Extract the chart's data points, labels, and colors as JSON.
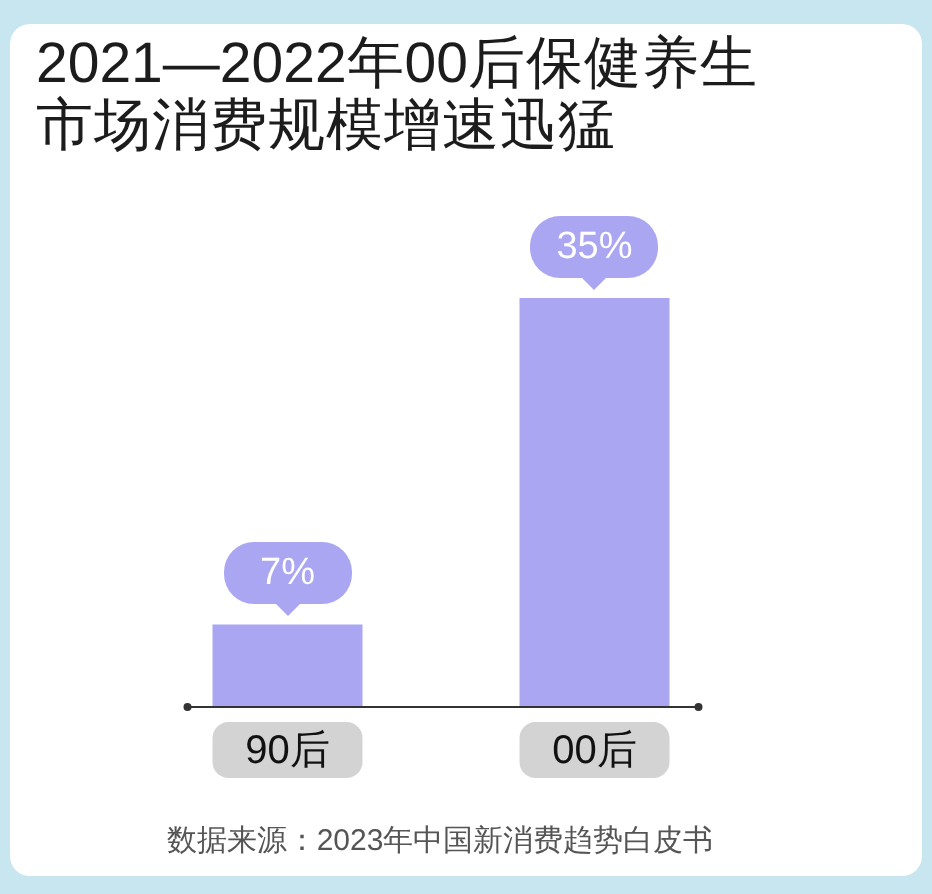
{
  "chart_data": {
    "type": "bar",
    "title": "2021—2022年00后保健养生市场消费规模增速迅猛",
    "categories": [
      "90后",
      "00后"
    ],
    "values": [
      7,
      35
    ],
    "value_labels": [
      "7%",
      "35%"
    ],
    "color": "#aaa6f2",
    "annotations": [
      "数据来源：2023年中国新消费趋势白皮书"
    ]
  }
}
